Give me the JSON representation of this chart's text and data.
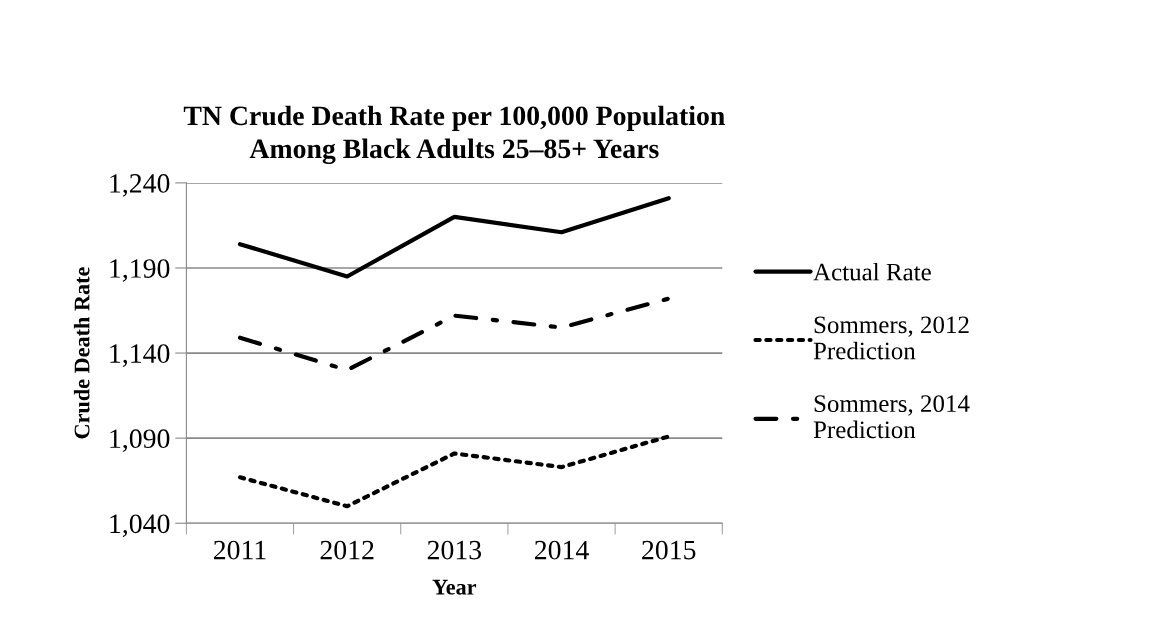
{
  "chart_data": {
    "type": "line",
    "title": "TN Crude Death Rate per 100,000 Population\nAmong Black Adults 25–85+ Years",
    "xlabel": "Year",
    "ylabel": "Crude Death Rate",
    "categories": [
      "2011",
      "2012",
      "2013",
      "2014",
      "2015"
    ],
    "series": [
      {
        "name": "Actual Rate",
        "color": "#000000",
        "line_style": "solid",
        "values": [
          1204,
          1185,
          1220,
          1211,
          1231
        ]
      },
      {
        "name": "Sommers, 2012\nPrediction",
        "color": "#000000",
        "line_style": "dotted",
        "values": [
          1067,
          1050,
          1081,
          1073,
          1091
        ]
      },
      {
        "name": "Sommers, 2014\nPrediction",
        "color": "#000000",
        "line_style": "dashdot",
        "values": [
          1149,
          1130,
          1162,
          1155,
          1172
        ]
      }
    ],
    "ylim": [
      1040,
      1240
    ],
    "yticks": [
      {
        "value": 1040,
        "label": "1,040"
      },
      {
        "value": 1090,
        "label": "1,090"
      },
      {
        "value": 1140,
        "label": "1,140"
      },
      {
        "value": 1190,
        "label": "1,190"
      },
      {
        "value": 1240,
        "label": "1,240"
      }
    ],
    "grid": "y",
    "legend": "right"
  }
}
